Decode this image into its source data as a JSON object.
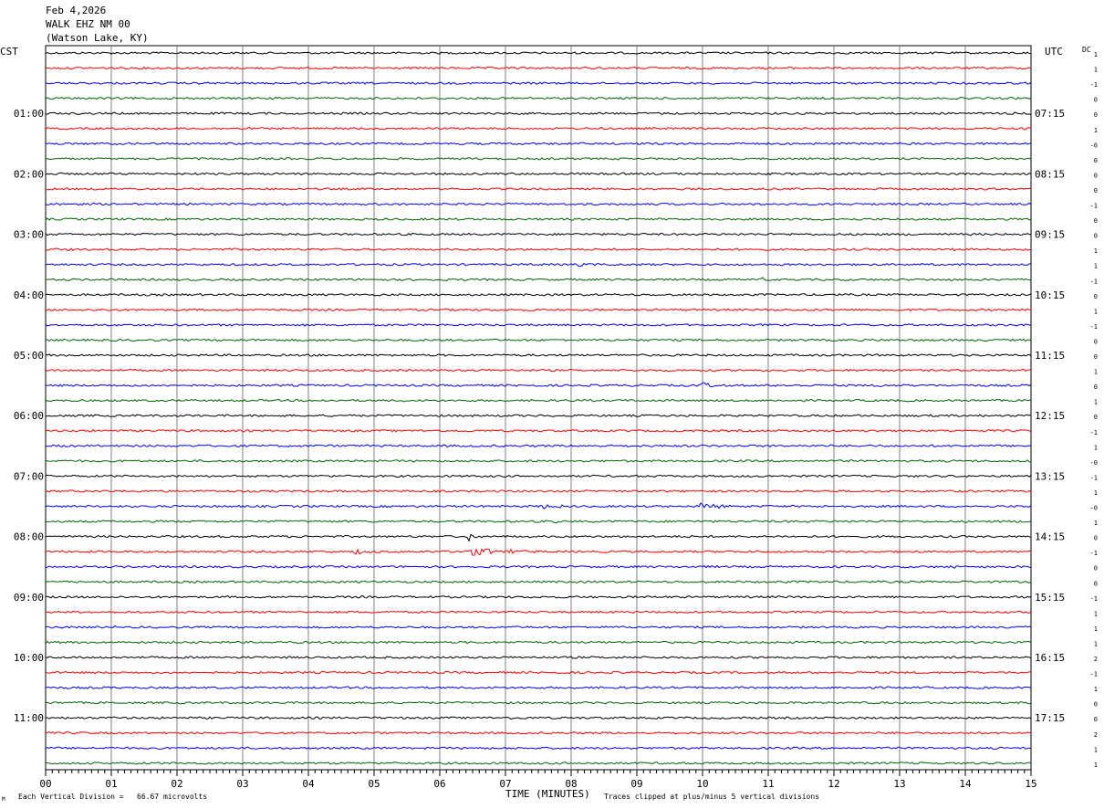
{
  "header": {
    "date": "Feb 4,2026",
    "station": "WALK EHZ NM 00",
    "location": "(Watson Lake, KY)"
  },
  "left_timezone": "CST",
  "right_timezone": "UTC",
  "dc_label": "DC",
  "footer": {
    "vertical_division": "Each Vertical Division =   66.67 microvolts",
    "clip_note": "Traces clipped at plus/minus 5 vertical divisions",
    "corner_mark": "M"
  },
  "colors": {
    "trace_cycle": [
      "#000000",
      "#ff0000",
      "#0000ff",
      "#006400"
    ],
    "grid": "#808080"
  },
  "chart_data": {
    "type": "line",
    "title": "WALK EHZ NM 00",
    "xlabel": "TIME (MINUTES)",
    "xlim": [
      0,
      15
    ],
    "x_tick_labels": [
      "00",
      "01",
      "02",
      "03",
      "04",
      "05",
      "06",
      "07",
      "08",
      "09",
      "10",
      "11",
      "12",
      "13",
      "14",
      "15"
    ],
    "rows_per_hour": 4,
    "minutes_per_row": 15,
    "row_count": 48,
    "left_hour_labels": [
      "01:00",
      "02:00",
      "03:00",
      "04:00",
      "05:00",
      "06:00",
      "07:00",
      "08:00",
      "09:00",
      "10:00",
      "11:00"
    ],
    "right_hour_labels": [
      "07:15",
      "08:15",
      "09:15",
      "10:15",
      "11:15",
      "12:15",
      "13:15",
      "14:15",
      "15:15",
      "16:15",
      "17:15"
    ],
    "dc_offsets": [
      "1",
      "1",
      "-1",
      "0",
      "0",
      "1",
      "-0",
      "0",
      "0",
      "0",
      "-1",
      "0",
      "0",
      "1",
      "1",
      "-1",
      "0",
      "1",
      "-1",
      "0",
      "0",
      "1",
      "0",
      "1",
      "0",
      "-1",
      "1",
      "-0",
      "-1",
      "1",
      "-0",
      "1",
      "0",
      "-1",
      "0",
      "0",
      "-1",
      "1",
      "1",
      "1",
      "2",
      "-1",
      "1",
      "0",
      "0",
      "2",
      "1",
      "1"
    ],
    "events": [
      {
        "row": 4,
        "minute": 14.15,
        "amplitude": 2,
        "duration": 0.2
      },
      {
        "row": 13,
        "minute": 13.8,
        "amplitude": 1.2,
        "duration": 0.5
      },
      {
        "row": 14,
        "minute": 8.0,
        "amplitude": 2,
        "duration": 0.4
      },
      {
        "row": 15,
        "minute": 10.9,
        "amplitude": 2,
        "duration": 0.25
      },
      {
        "row": 22,
        "minute": 10.0,
        "amplitude": 4,
        "duration": 0.3
      },
      {
        "row": 22,
        "minute": 12.7,
        "amplitude": 1,
        "duration": 0.4
      },
      {
        "row": 30,
        "minute": 7.6,
        "amplitude": 3,
        "duration": 0.4
      },
      {
        "row": 30,
        "minute": 9.5,
        "amplitude": 1.2,
        "duration": 0.3
      },
      {
        "row": 30,
        "minute": 9.95,
        "amplitude": 4.5,
        "duration": 0.5
      },
      {
        "row": 31,
        "minute": 7.7,
        "amplitude": 2,
        "duration": 0.3
      },
      {
        "row": 32,
        "minute": 6.45,
        "amplitude": 6,
        "duration": 0.2
      },
      {
        "row": 33,
        "minute": 4.7,
        "amplitude": 2.5,
        "duration": 0.5
      },
      {
        "row": 33,
        "minute": 6.4,
        "amplitude": 5,
        "duration": 1.2
      },
      {
        "row": 34,
        "minute": 13.8,
        "amplitude": 1,
        "duration": 0.4
      },
      {
        "row": 38,
        "minute": 1.05,
        "amplitude": 2,
        "duration": 0.15
      },
      {
        "row": 44,
        "minute": 7.1,
        "amplitude": 1.2,
        "duration": 0.3
      }
    ]
  }
}
